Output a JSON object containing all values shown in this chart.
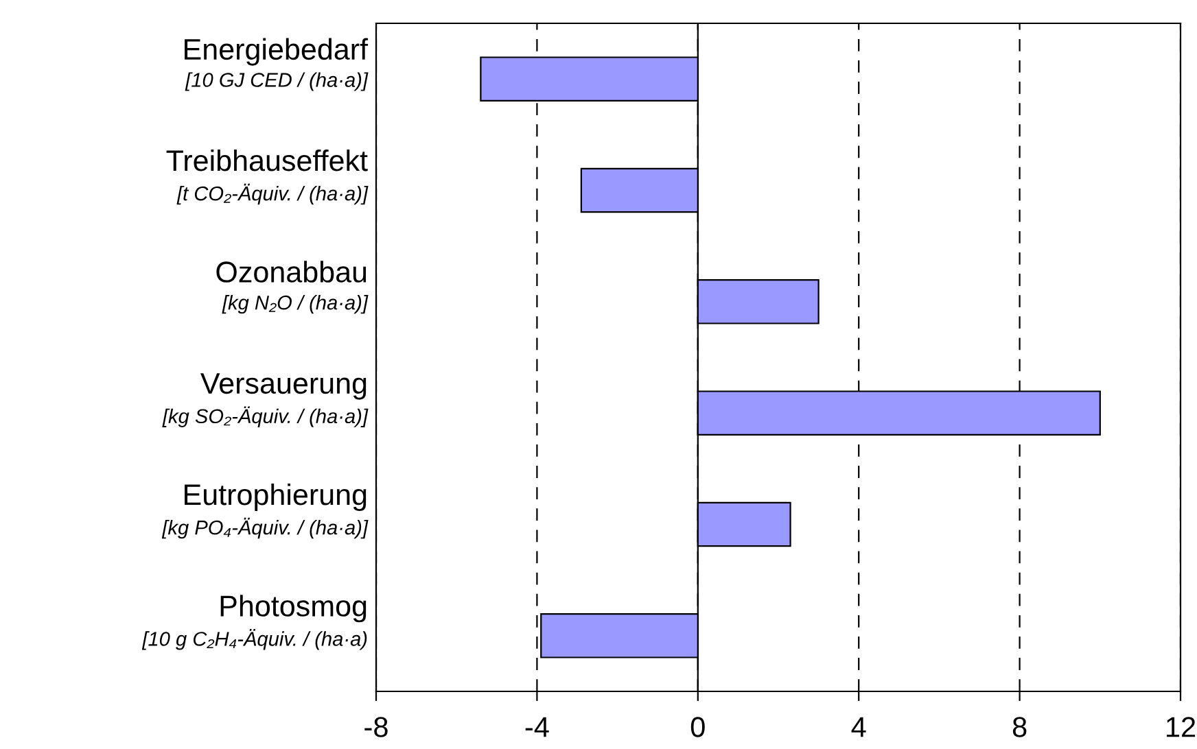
{
  "chart_data": {
    "type": "bar",
    "orientation": "horizontal",
    "categories": [
      "Energiebedarf\n[10 GJ CED / (ha·a)]",
      "Treibhauseffekt\n[t CO₂-Äquiv. / (ha·a)]",
      "Ozonabbau\n[kg N₂O / (ha·a)]",
      "Versauerung\n[kg SO₂-Äquiv. / (ha·a)]",
      "Eutrophierung\n[kg PO₄-Äquiv. / (ha·a)]",
      "Photosmog\n[10 g C₂H₄-Äquiv. / (ha·a)"
    ],
    "values": [
      -5.4,
      -2.9,
      3.0,
      10.0,
      2.3,
      -3.9
    ],
    "color": "#9999ff",
    "xlim": [
      -8,
      12
    ],
    "xticks": [
      -8,
      -4,
      0,
      4,
      8,
      12
    ],
    "grid": "x"
  }
}
